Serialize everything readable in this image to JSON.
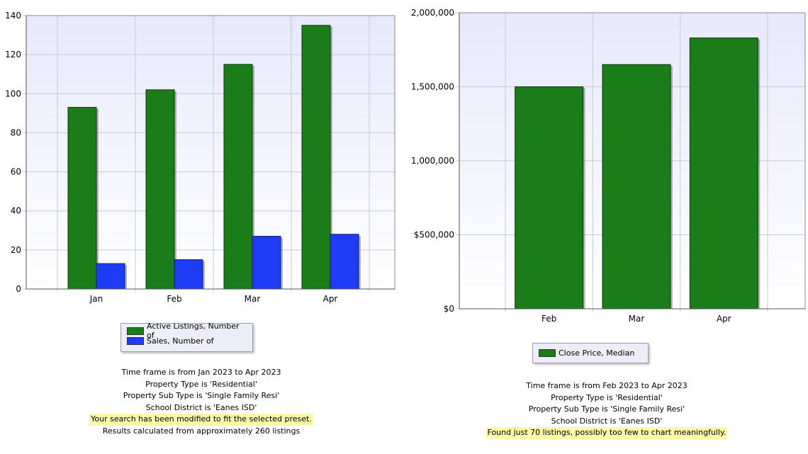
{
  "chart_data": [
    {
      "type": "bar",
      "categories": [
        "Jan",
        "Feb",
        "Mar",
        "Apr"
      ],
      "series": [
        {
          "name": "Active Listings, Number of",
          "values": [
            93,
            102,
            115,
            135
          ],
          "color": "#1a7d1a"
        },
        {
          "name": "Sales, Number of",
          "values": [
            13,
            15,
            27,
            28
          ],
          "color": "#1f3cf5"
        }
      ],
      "ylim": [
        0,
        140
      ],
      "yticks": [
        0,
        20,
        40,
        60,
        80,
        100,
        120,
        140
      ],
      "ytick_labels": [
        "0",
        "20",
        "40",
        "60",
        "80",
        "100",
        "120",
        "140"
      ],
      "grid": true,
      "legend": "bottom-center"
    },
    {
      "type": "bar",
      "categories": [
        "Feb",
        "Mar",
        "Apr"
      ],
      "series": [
        {
          "name": "Close Price, Median",
          "values": [
            1500000,
            1650000,
            1830000
          ],
          "color": "#1a7d1a"
        }
      ],
      "ylim": [
        0,
        2000000
      ],
      "yticks": [
        0,
        500000,
        1000000,
        1500000,
        2000000
      ],
      "ytick_labels": [
        "$0",
        "$500,000",
        "1,000,000",
        "1,500,000",
        "2,000,000"
      ],
      "grid": true,
      "legend": "bottom-center"
    }
  ],
  "left": {
    "legend": [
      "Active Listings, Number of",
      "Sales, Number of"
    ],
    "criteria": [
      "Time frame is from Jan 2023 to Apr 2023",
      "Property Type is 'Residential'",
      "Property Sub Type is 'Single Family Resi'",
      "School District is 'Eanes ISD'"
    ],
    "notice": "Your search has been modified to fit the selected preset.",
    "results": "Results calculated from approximately 260 listings"
  },
  "right": {
    "legend": [
      "Close Price, Median"
    ],
    "criteria": [
      "Time frame is from Feb 2023 to Apr 2023",
      "Property Type is 'Residential'",
      "Property Sub Type is 'Single Family Resi'",
      "School District is 'Eanes ISD'"
    ],
    "notice": "Found just 70 listings, possibly too few to chart meaningfully."
  }
}
